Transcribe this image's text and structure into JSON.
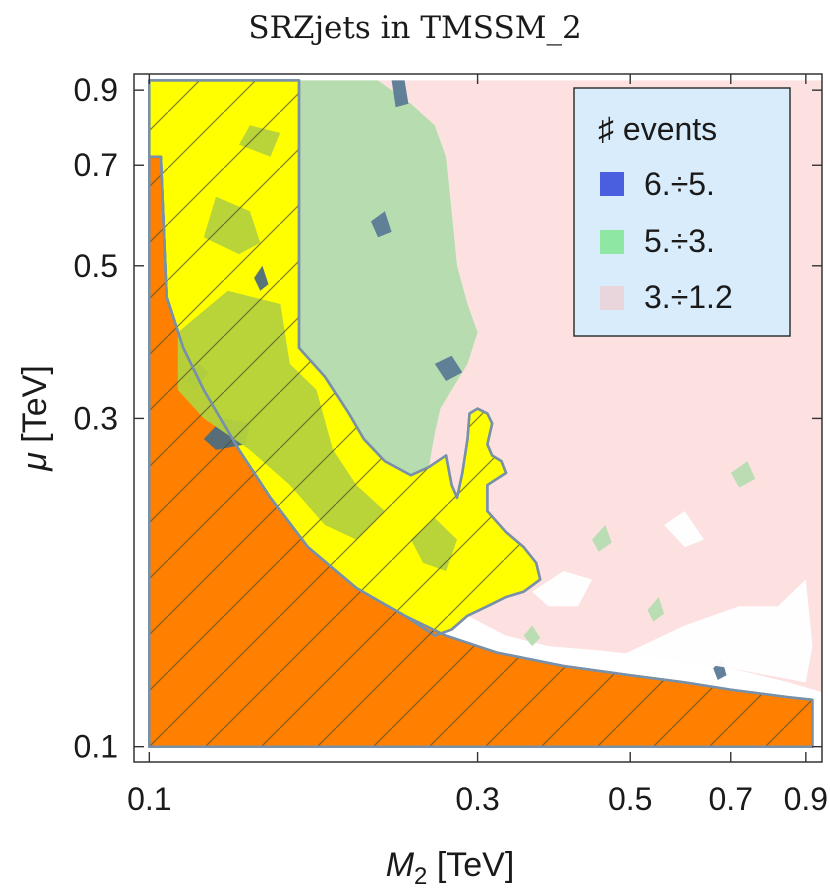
{
  "chart_data": {
    "type": "contour",
    "title": "SRZjets in TMSSM_2",
    "xlabel": {
      "symbol": "M",
      "subscript": "2",
      "unit": "[TeV]"
    },
    "ylabel": {
      "symbol": "μ",
      "unit": "[TeV]"
    },
    "xscale": "log",
    "yscale": "log",
    "xlim": [
      0.095,
      0.95
    ],
    "ylim": [
      0.095,
      0.95
    ],
    "xticks": [
      {
        "value": 0.1,
        "label": "0.1"
      },
      {
        "value": 0.3,
        "label": "0.3"
      },
      {
        "value": 0.5,
        "label": "0.5"
      },
      {
        "value": 0.7,
        "label": "0.7"
      },
      {
        "value": 0.9,
        "label": "0.9"
      }
    ],
    "yticks": [
      {
        "value": 0.1,
        "label": "0.1"
      },
      {
        "value": 0.3,
        "label": "0.3"
      },
      {
        "value": 0.5,
        "label": "0.5"
      },
      {
        "value": 0.7,
        "label": "0.7"
      },
      {
        "value": 0.9,
        "label": "0.9"
      }
    ],
    "legend": {
      "title": "♯ events",
      "position": "top-right",
      "entries": [
        {
          "label": "6.÷5.",
          "color": "#4a5fe0"
        },
        {
          "label": "5.÷3.",
          "color": "#8ee8a4"
        },
        {
          "label": "3.÷1.2",
          "color": "#e8d6dc"
        }
      ]
    },
    "colors": {
      "excluded_orange": "#ff8000",
      "excluded_yellow": "#ffff00",
      "yellow_dark": "#f5d91a",
      "green_on_yellow": "#b4d23c",
      "blue_on_yellow": "#4e6d80",
      "green_region": "#b6dcb0",
      "blue_region": "#5b7a95",
      "pink_region": "#fde1e1",
      "boundary": "#7890a8",
      "legend_bg": "#d9ecfb"
    },
    "regions": [
      {
        "name": "excluded-orange",
        "points": [
          [
            0.1,
            0.1
          ],
          [
            0.1,
            0.72
          ],
          [
            0.104,
            0.72
          ],
          [
            0.106,
            0.45
          ],
          [
            0.112,
            0.38
          ],
          [
            0.12,
            0.33
          ],
          [
            0.135,
            0.27
          ],
          [
            0.15,
            0.23
          ],
          [
            0.17,
            0.195
          ],
          [
            0.2,
            0.17
          ],
          [
            0.235,
            0.155
          ],
          [
            0.27,
            0.145
          ],
          [
            0.32,
            0.137
          ],
          [
            0.4,
            0.131
          ],
          [
            0.5,
            0.127
          ],
          [
            0.6,
            0.124
          ],
          [
            0.7,
            0.121
          ],
          [
            0.85,
            0.118
          ],
          [
            0.92,
            0.117
          ],
          [
            0.92,
            0.1
          ]
        ]
      },
      {
        "name": "excluded-yellow",
        "points": [
          [
            0.1,
            0.72
          ],
          [
            0.1,
            0.93
          ],
          [
            0.165,
            0.93
          ],
          [
            0.165,
            0.38
          ],
          [
            0.18,
            0.345
          ],
          [
            0.195,
            0.305
          ],
          [
            0.205,
            0.28
          ],
          [
            0.22,
            0.26
          ],
          [
            0.24,
            0.248
          ],
          [
            0.255,
            0.255
          ],
          [
            0.27,
            0.265
          ],
          [
            0.275,
            0.24
          ],
          [
            0.28,
            0.23
          ],
          [
            0.285,
            0.25
          ],
          [
            0.29,
            0.28
          ],
          [
            0.292,
            0.305
          ],
          [
            0.3,
            0.31
          ],
          [
            0.31,
            0.305
          ],
          [
            0.315,
            0.295
          ],
          [
            0.31,
            0.275
          ],
          [
            0.315,
            0.265
          ],
          [
            0.325,
            0.26
          ],
          [
            0.33,
            0.25
          ],
          [
            0.31,
            0.24
          ],
          [
            0.31,
            0.22
          ],
          [
            0.33,
            0.205
          ],
          [
            0.35,
            0.195
          ],
          [
            0.365,
            0.185
          ],
          [
            0.37,
            0.175
          ],
          [
            0.35,
            0.168
          ],
          [
            0.33,
            0.165
          ],
          [
            0.31,
            0.16
          ],
          [
            0.29,
            0.155
          ],
          [
            0.275,
            0.148
          ],
          [
            0.26,
            0.145
          ],
          [
            0.235,
            0.155
          ],
          [
            0.2,
            0.17
          ],
          [
            0.17,
            0.195
          ],
          [
            0.15,
            0.23
          ],
          [
            0.135,
            0.27
          ],
          [
            0.12,
            0.33
          ],
          [
            0.112,
            0.38
          ],
          [
            0.106,
            0.45
          ],
          [
            0.104,
            0.72
          ]
        ]
      },
      {
        "name": "green-region",
        "points": [
          [
            0.165,
            0.93
          ],
          [
            0.215,
            0.93
          ],
          [
            0.24,
            0.86
          ],
          [
            0.26,
            0.8
          ],
          [
            0.27,
            0.72
          ],
          [
            0.275,
            0.6
          ],
          [
            0.28,
            0.5
          ],
          [
            0.29,
            0.44
          ],
          [
            0.3,
            0.4
          ],
          [
            0.29,
            0.36
          ],
          [
            0.275,
            0.33
          ],
          [
            0.265,
            0.31
          ],
          [
            0.26,
            0.285
          ],
          [
            0.255,
            0.255
          ],
          [
            0.24,
            0.248
          ],
          [
            0.22,
            0.26
          ],
          [
            0.205,
            0.28
          ],
          [
            0.195,
            0.305
          ],
          [
            0.18,
            0.345
          ],
          [
            0.165,
            0.38
          ]
        ]
      },
      {
        "name": "pink-region",
        "points": [
          [
            0.215,
            0.93
          ],
          [
            0.95,
            0.93
          ],
          [
            0.95,
            0.12
          ],
          [
            0.85,
            0.124
          ],
          [
            0.7,
            0.13
          ],
          [
            0.55,
            0.135
          ],
          [
            0.45,
            0.138
          ],
          [
            0.38,
            0.14
          ],
          [
            0.33,
            0.145
          ],
          [
            0.29,
            0.155
          ],
          [
            0.31,
            0.16
          ],
          [
            0.35,
            0.168
          ],
          [
            0.37,
            0.175
          ],
          [
            0.365,
            0.185
          ],
          [
            0.35,
            0.195
          ],
          [
            0.33,
            0.205
          ],
          [
            0.31,
            0.22
          ],
          [
            0.31,
            0.24
          ],
          [
            0.33,
            0.25
          ],
          [
            0.325,
            0.26
          ],
          [
            0.315,
            0.265
          ],
          [
            0.31,
            0.275
          ],
          [
            0.315,
            0.295
          ],
          [
            0.31,
            0.305
          ],
          [
            0.3,
            0.31
          ],
          [
            0.292,
            0.305
          ],
          [
            0.29,
            0.28
          ],
          [
            0.285,
            0.25
          ],
          [
            0.28,
            0.23
          ],
          [
            0.275,
            0.24
          ],
          [
            0.27,
            0.265
          ],
          [
            0.255,
            0.255
          ],
          [
            0.26,
            0.285
          ],
          [
            0.265,
            0.31
          ],
          [
            0.275,
            0.33
          ],
          [
            0.29,
            0.36
          ],
          [
            0.3,
            0.4
          ],
          [
            0.29,
            0.44
          ],
          [
            0.28,
            0.5
          ],
          [
            0.275,
            0.6
          ],
          [
            0.27,
            0.72
          ],
          [
            0.26,
            0.8
          ],
          [
            0.24,
            0.86
          ]
        ]
      }
    ],
    "patches": [
      {
        "name": "blue-patch-top",
        "color": "blue_region",
        "points": [
          [
            0.225,
            0.93
          ],
          [
            0.235,
            0.93
          ],
          [
            0.238,
            0.86
          ],
          [
            0.228,
            0.85
          ]
        ]
      },
      {
        "name": "blue-patch-left",
        "color": "blue_region",
        "points": [
          [
            0.21,
            0.58
          ],
          [
            0.22,
            0.6
          ],
          [
            0.225,
            0.56
          ],
          [
            0.215,
            0.55
          ]
        ]
      },
      {
        "name": "blue-patch-mid",
        "color": "blue_region",
        "points": [
          [
            0.26,
            0.36
          ],
          [
            0.275,
            0.37
          ],
          [
            0.285,
            0.35
          ],
          [
            0.27,
            0.34
          ]
        ]
      },
      {
        "name": "blue-patch-yellow-a",
        "color": "blue_on_yellow",
        "points": [
          [
            0.12,
            0.28
          ],
          [
            0.128,
            0.3
          ],
          [
            0.14,
            0.295
          ],
          [
            0.138,
            0.275
          ],
          [
            0.125,
            0.27
          ]
        ]
      },
      {
        "name": "blue-patch-yellow-b",
        "color": "blue_on_yellow",
        "points": [
          [
            0.113,
            0.34
          ],
          [
            0.118,
            0.36
          ],
          [
            0.122,
            0.35
          ],
          [
            0.117,
            0.33
          ]
        ]
      },
      {
        "name": "blue-patch-yellow-c",
        "color": "blue_on_yellow",
        "points": [
          [
            0.142,
            0.48
          ],
          [
            0.146,
            0.5
          ],
          [
            0.149,
            0.47
          ],
          [
            0.145,
            0.46
          ]
        ]
      },
      {
        "name": "blue-patch-pink",
        "color": "blue_region",
        "points": [
          [
            0.66,
            0.13
          ],
          [
            0.68,
            0.134
          ],
          [
            0.69,
            0.127
          ],
          [
            0.67,
            0.125
          ]
        ]
      },
      {
        "name": "green-patch-yellow-a",
        "color": "green_on_yellow",
        "points": [
          [
            0.11,
            0.4
          ],
          [
            0.13,
            0.46
          ],
          [
            0.155,
            0.44
          ],
          [
            0.16,
            0.36
          ],
          [
            0.175,
            0.33
          ],
          [
            0.185,
            0.27
          ],
          [
            0.2,
            0.24
          ],
          [
            0.22,
            0.22
          ],
          [
            0.2,
            0.2
          ],
          [
            0.18,
            0.21
          ],
          [
            0.16,
            0.24
          ],
          [
            0.14,
            0.27
          ],
          [
            0.12,
            0.3
          ],
          [
            0.11,
            0.33
          ]
        ]
      },
      {
        "name": "green-patch-yellow-b",
        "color": "green_on_yellow",
        "points": [
          [
            0.12,
            0.55
          ],
          [
            0.125,
            0.63
          ],
          [
            0.14,
            0.6
          ],
          [
            0.145,
            0.54
          ],
          [
            0.135,
            0.52
          ]
        ]
      },
      {
        "name": "green-patch-yellow-c",
        "color": "green_on_yellow",
        "points": [
          [
            0.135,
            0.75
          ],
          [
            0.14,
            0.8
          ],
          [
            0.155,
            0.78
          ],
          [
            0.15,
            0.72
          ]
        ]
      },
      {
        "name": "green-patch-yellow-d",
        "color": "green_on_yellow",
        "points": [
          [
            0.24,
            0.2
          ],
          [
            0.26,
            0.215
          ],
          [
            0.28,
            0.2
          ],
          [
            0.27,
            0.18
          ],
          [
            0.25,
            0.185
          ]
        ]
      },
      {
        "name": "green-patch-pink-a",
        "color": "green_region",
        "points": [
          [
            0.7,
            0.25
          ],
          [
            0.74,
            0.26
          ],
          [
            0.76,
            0.245
          ],
          [
            0.72,
            0.238
          ]
        ]
      },
      {
        "name": "green-patch-pink-b",
        "color": "green_region",
        "points": [
          [
            0.44,
            0.2
          ],
          [
            0.46,
            0.21
          ],
          [
            0.47,
            0.198
          ],
          [
            0.45,
            0.192
          ]
        ]
      },
      {
        "name": "green-patch-pink-c",
        "color": "green_region",
        "points": [
          [
            0.53,
            0.158
          ],
          [
            0.55,
            0.165
          ],
          [
            0.56,
            0.156
          ],
          [
            0.54,
            0.152
          ]
        ]
      },
      {
        "name": "green-patch-pink-d",
        "color": "green_region",
        "points": [
          [
            0.35,
            0.145
          ],
          [
            0.36,
            0.15
          ],
          [
            0.37,
            0.144
          ],
          [
            0.36,
            0.14
          ]
        ]
      },
      {
        "name": "white-patch-a",
        "color": "#ffffff",
        "points": [
          [
            0.56,
            0.21
          ],
          [
            0.6,
            0.22
          ],
          [
            0.64,
            0.2
          ],
          [
            0.6,
            0.195
          ]
        ]
      },
      {
        "name": "white-patch-b",
        "color": "#ffffff",
        "points": [
          [
            0.48,
            0.135
          ],
          [
            0.6,
            0.15
          ],
          [
            0.72,
            0.16
          ],
          [
            0.82,
            0.16
          ],
          [
            0.9,
            0.175
          ],
          [
            0.92,
            0.14
          ],
          [
            0.9,
            0.124
          ],
          [
            0.7,
            0.13
          ],
          [
            0.55,
            0.135
          ]
        ]
      },
      {
        "name": "white-patch-c",
        "color": "#ffffff",
        "points": [
          [
            0.36,
            0.168
          ],
          [
            0.4,
            0.18
          ],
          [
            0.44,
            0.175
          ],
          [
            0.42,
            0.16
          ],
          [
            0.38,
            0.16
          ]
        ]
      }
    ]
  }
}
